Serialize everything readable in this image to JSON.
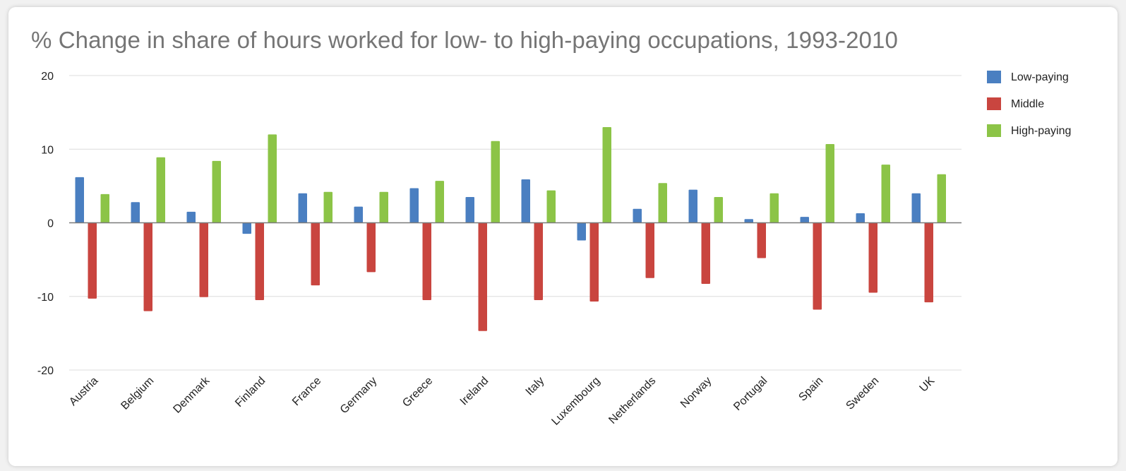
{
  "chart_data": {
    "type": "bar",
    "title": "% Change in share of hours worked for low- to high-paying occupations, 1993-2010",
    "xlabel": "",
    "ylabel": "",
    "ylim": [
      -20,
      20
    ],
    "yticks": [
      20,
      10,
      0,
      -10,
      -20
    ],
    "grid": true,
    "legend_position": "right",
    "categories": [
      "Austria",
      "Belgium",
      "Denmark",
      "Finland",
      "France",
      "Germany",
      "Greece",
      "Ireland",
      "Italy",
      "Luxembourg",
      "Netherlands",
      "Norway",
      "Portugal",
      "Spain",
      "Sweden",
      "UK"
    ],
    "series": [
      {
        "name": "Low-paying",
        "color": "#4a7fc1",
        "values": [
          6.2,
          2.8,
          1.5,
          -1.5,
          4.0,
          2.2,
          4.7,
          3.5,
          5.9,
          -2.4,
          1.9,
          4.5,
          0.5,
          0.8,
          1.3,
          4.0
        ]
      },
      {
        "name": "Middle",
        "color": "#c9453f",
        "values": [
          -10.3,
          -12.0,
          -10.1,
          -10.5,
          -8.5,
          -6.7,
          -10.5,
          -14.7,
          -10.5,
          -10.7,
          -7.5,
          -8.3,
          -4.8,
          -11.8,
          -9.5,
          -10.8
        ]
      },
      {
        "name": "High-paying",
        "color": "#8cc447",
        "values": [
          3.9,
          8.9,
          8.4,
          12.0,
          4.2,
          4.2,
          5.7,
          11.1,
          4.4,
          13.0,
          5.4,
          3.5,
          4.0,
          10.7,
          7.9,
          6.6
        ]
      }
    ]
  }
}
